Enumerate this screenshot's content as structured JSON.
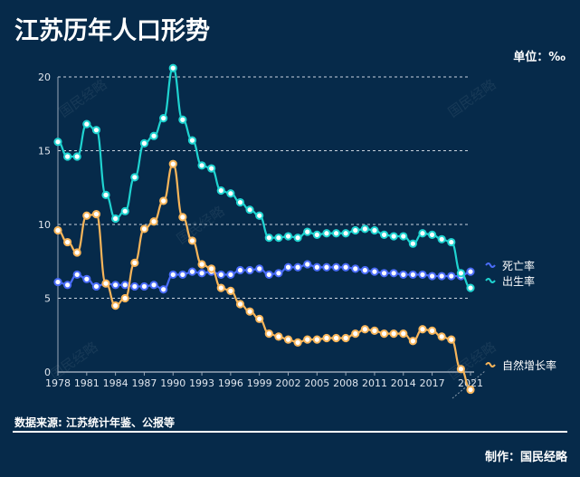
{
  "title": "江苏历年人口形势",
  "unit": "单位：‰",
  "source": "数据来源: 江苏统计年鉴、公报等",
  "maker": "制作：国民经略",
  "watermark": "国民经略",
  "chart_data": {
    "type": "line",
    "title": "江苏历年人口形势",
    "x": [
      1978,
      1979,
      1980,
      1981,
      1982,
      1983,
      1984,
      1985,
      1986,
      1987,
      1988,
      1989,
      1990,
      1991,
      1992,
      1993,
      1994,
      1995,
      1996,
      1997,
      1998,
      1999,
      2000,
      2001,
      2002,
      2003,
      2004,
      2005,
      2006,
      2007,
      2008,
      2009,
      2010,
      2011,
      2012,
      2013,
      2014,
      2015,
      2016,
      2017,
      2018,
      2019,
      2020,
      2021
    ],
    "xticks": [
      "1978",
      "1981",
      "1984",
      "1987",
      "1990",
      "1993",
      "1996",
      "1999",
      "2002",
      "2005",
      "2008",
      "2011",
      "2014",
      "2017",
      "2021"
    ],
    "yticks": [
      "0",
      "5",
      "10",
      "15",
      "20"
    ],
    "ylim": [
      0,
      20
    ],
    "grid": true,
    "legend": "right",
    "series": [
      {
        "name": "死亡率",
        "color": "#4a6cf7",
        "values": [
          6.1,
          5.9,
          6.6,
          6.3,
          5.8,
          6.0,
          5.9,
          5.9,
          5.8,
          5.8,
          5.9,
          5.6,
          6.6,
          6.6,
          6.8,
          6.7,
          6.8,
          6.6,
          6.6,
          6.9,
          6.9,
          7.0,
          6.6,
          6.7,
          7.1,
          7.1,
          7.3,
          7.1,
          7.1,
          7.1,
          7.1,
          7.0,
          6.9,
          6.8,
          6.7,
          6.7,
          6.6,
          6.6,
          6.6,
          6.5,
          6.5,
          6.5,
          6.5,
          6.8
        ]
      },
      {
        "name": "出生率",
        "color": "#1fd3d0",
        "values": [
          15.6,
          14.6,
          14.6,
          16.8,
          16.4,
          12.0,
          10.4,
          10.9,
          13.2,
          15.5,
          16.0,
          17.2,
          20.6,
          17.1,
          15.7,
          14.0,
          13.8,
          12.3,
          12.1,
          11.5,
          11.0,
          10.6,
          9.1,
          9.1,
          9.2,
          9.1,
          9.5,
          9.3,
          9.4,
          9.4,
          9.4,
          9.6,
          9.7,
          9.6,
          9.3,
          9.2,
          9.2,
          8.7,
          9.4,
          9.3,
          9.0,
          8.8,
          6.7,
          5.7
        ]
      },
      {
        "name": "自然增长率",
        "color": "#f7b55a",
        "values": [
          9.6,
          8.8,
          8.1,
          10.6,
          10.7,
          6.0,
          4.5,
          5.0,
          7.4,
          9.7,
          10.2,
          11.6,
          14.1,
          10.5,
          8.9,
          7.3,
          7.0,
          5.7,
          5.5,
          4.6,
          4.1,
          3.6,
          2.6,
          2.4,
          2.2,
          2.0,
          2.2,
          2.2,
          2.3,
          2.3,
          2.3,
          2.6,
          2.9,
          2.8,
          2.6,
          2.6,
          2.6,
          2.1,
          2.9,
          2.8,
          2.4,
          2.2,
          0.2,
          -1.2
        ]
      }
    ]
  }
}
